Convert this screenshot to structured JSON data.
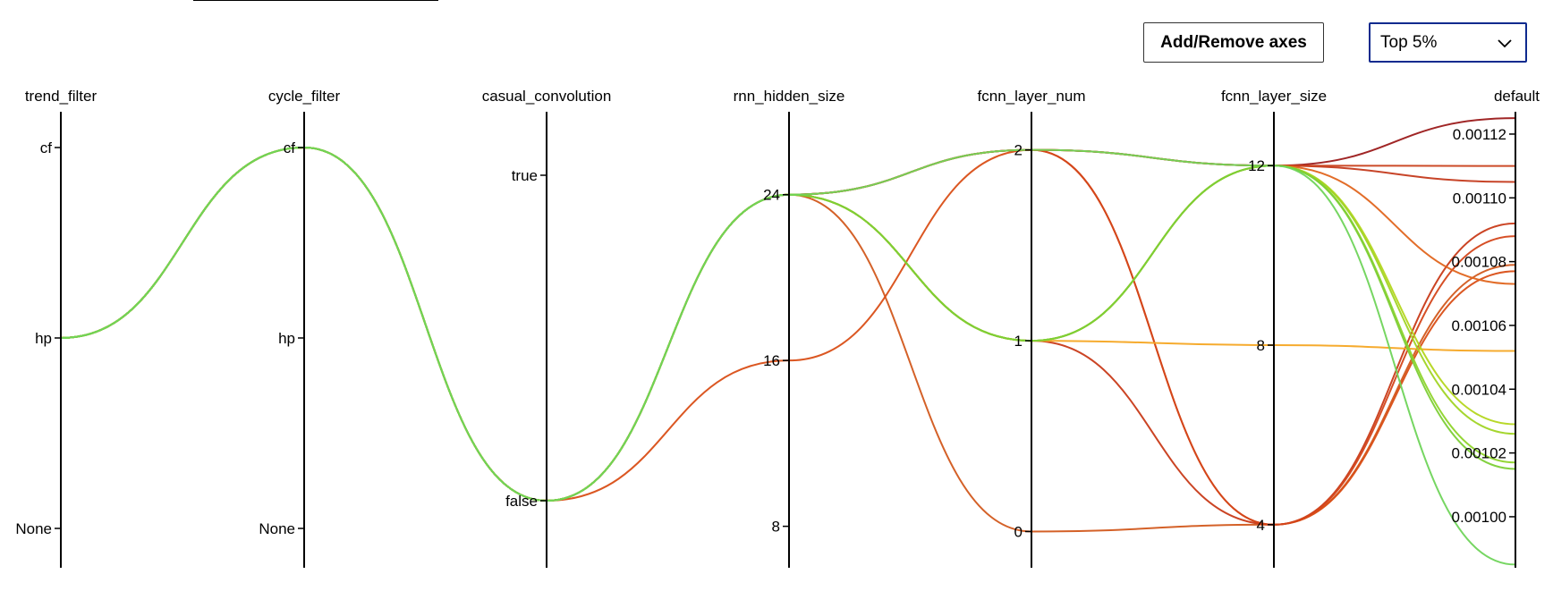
{
  "toolbar": {
    "add_remove_label": "Add/Remove axes",
    "filter_selected": "Top 5%"
  },
  "chart_data": {
    "type": "parallel-coordinates",
    "axes": [
      {
        "key": "trend_filter",
        "label": "trend_filter",
        "kind": "categorical",
        "ticks": [
          "cf",
          "hp",
          "None"
        ]
      },
      {
        "key": "cycle_filter",
        "label": "cycle_filter",
        "kind": "categorical",
        "ticks": [
          "cf",
          "hp",
          "None"
        ]
      },
      {
        "key": "casual_convolution",
        "label": "casual_convolution",
        "kind": "categorical",
        "ticks": [
          "true",
          "false"
        ]
      },
      {
        "key": "rnn_hidden_size",
        "label": "rnn_hidden_size",
        "kind": "numeric",
        "ticks": [
          24,
          16,
          8
        ],
        "range": [
          6,
          28
        ]
      },
      {
        "key": "fcnn_layer_num",
        "label": "fcnn_layer_num",
        "kind": "numeric",
        "ticks": [
          2,
          1,
          0
        ],
        "range": [
          -0.19,
          2.2
        ]
      },
      {
        "key": "fcnn_layer_size",
        "label": "fcnn_layer_size",
        "kind": "numeric",
        "ticks": [
          12,
          8,
          4
        ],
        "range": [
          3.04,
          13.2
        ]
      },
      {
        "key": "default",
        "label": "default",
        "kind": "numeric",
        "ticks": [
          "0.00112",
          "0.00110",
          "0.00108",
          "0.00106",
          "0.00104",
          "0.00102",
          "0.00100"
        ],
        "range": [
          0.000984,
          0.001127
        ]
      }
    ],
    "series": [
      {
        "values": [
          "hp",
          "cf",
          "false",
          24,
          2,
          12,
          0.001125
        ],
        "color": "#9b1a1a"
      },
      {
        "values": [
          "hp",
          "cf",
          "false",
          24,
          2,
          12,
          0.001105
        ],
        "color": "#c43a1c"
      },
      {
        "values": [
          "hp",
          "cf",
          "false",
          24,
          1,
          12,
          0.00111
        ],
        "color": "#c9411c"
      },
      {
        "values": [
          "hp",
          "cf",
          "false",
          24,
          0,
          4,
          0.001079
        ],
        "color": "#d2581c"
      },
      {
        "values": [
          "hp",
          "cf",
          "false",
          16,
          2,
          4,
          0.001077
        ],
        "color": "#d94e16"
      },
      {
        "values": [
          "hp",
          "cf",
          "false",
          24,
          1,
          4,
          0.001092
        ],
        "color": "#c83a18"
      },
      {
        "values": [
          "hp",
          "cf",
          "false",
          24,
          2,
          4,
          0.001088
        ],
        "color": "#d4461a"
      },
      {
        "values": [
          "hp",
          "cf",
          "false",
          24,
          2,
          12,
          0.001073
        ],
        "color": "#e0651e"
      },
      {
        "values": [
          "hp",
          "cf",
          "false",
          24,
          1,
          8,
          0.001052
        ],
        "color": "#f5a623"
      },
      {
        "values": [
          "hp",
          "cf",
          "false",
          24,
          1,
          12,
          0.001029
        ],
        "color": "#b4d61e"
      },
      {
        "values": [
          "hp",
          "cf",
          "false",
          24,
          1,
          12,
          0.001026
        ],
        "color": "#a0d424"
      },
      {
        "values": [
          "hp",
          "cf",
          "false",
          24,
          1,
          12,
          0.001017
        ],
        "color": "#8ed42a"
      },
      {
        "values": [
          "hp",
          "cf",
          "false",
          24,
          1,
          12,
          0.001015
        ],
        "color": "#7ccf36"
      },
      {
        "values": [
          "hp",
          "cf",
          "false",
          24,
          2,
          12,
          0.000985
        ],
        "color": "#6fd45a"
      }
    ]
  }
}
